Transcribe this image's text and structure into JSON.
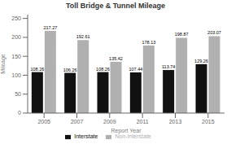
{
  "chart_data": {
    "type": "bar",
    "title": "Toll Bridge & Tunnel Mileage",
    "xlabel": "Report Year",
    "ylabel": "Mileage",
    "categories": [
      "2005",
      "2007",
      "2009",
      "2011",
      "2013",
      "2015"
    ],
    "series": [
      {
        "name": "Interstate",
        "color": "#111111",
        "values": [
          108.26,
          106.26,
          108.26,
          107.44,
          113.74,
          129.26
        ]
      },
      {
        "name": "Non-Interstate",
        "color": "#b0b0b0",
        "values": [
          217.27,
          192.61,
          135.42,
          178.13,
          198.87,
          203.07
        ]
      }
    ],
    "ylim": [
      0,
      260
    ],
    "yticks": [
      0,
      50,
      100,
      150,
      200,
      250
    ],
    "data_labels": true,
    "legend": "bottom",
    "grid": false
  }
}
